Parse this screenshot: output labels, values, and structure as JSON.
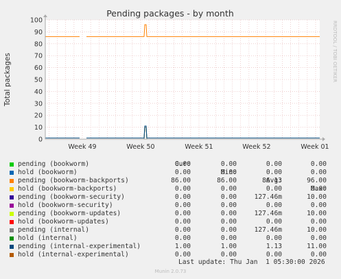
{
  "chart_data": {
    "type": "line",
    "title": "Pending packages - by month",
    "ylabel": "Total packages",
    "side_label": "RRDTOOL / TOBI OETIKER",
    "x_ticks": [
      "Week 49",
      "Week 50",
      "Week 51",
      "Week 52",
      "Week 01"
    ],
    "y_ticks_top": [
      80,
      90,
      100
    ],
    "y_ticks_top_extra": [
      70
    ],
    "y_ticks": [
      0,
      10,
      20,
      30,
      40,
      50,
      60,
      70,
      80,
      90,
      100
    ],
    "ylim": [
      0,
      100
    ],
    "grid": true,
    "series": [
      {
        "name": "pending (bookworm)",
        "color": "#00cc00",
        "cur": "0.00",
        "min": "0.00",
        "avg": "0.00",
        "max": "0.00"
      },
      {
        "name": "hold (bookworm)",
        "color": "#0066b3",
        "cur": "0.00",
        "min": "0.00",
        "avg": "0.00",
        "max": "0.00"
      },
      {
        "name": "pending (bookworm-backports)",
        "color": "#ff8000",
        "cur": "86.00",
        "min": "86.00",
        "avg": "86.13",
        "max": "96.00"
      },
      {
        "name": "hold (bookworm-backports)",
        "color": "#ffcc00",
        "cur": "0.00",
        "min": "0.00",
        "avg": "0.00",
        "max": "0.00"
      },
      {
        "name": "pending (bookworm-security)",
        "color": "#330099",
        "cur": "0.00",
        "min": "0.00",
        "avg": "127.46m",
        "max": "10.00"
      },
      {
        "name": "hold (bookworm-security)",
        "color": "#990099",
        "cur": "0.00",
        "min": "0.00",
        "avg": "0.00",
        "max": "0.00"
      },
      {
        "name": "pending (bookworm-updates)",
        "color": "#ccff00",
        "cur": "0.00",
        "min": "0.00",
        "avg": "127.46m",
        "max": "10.00"
      },
      {
        "name": "hold (bookworm-updates)",
        "color": "#ff0000",
        "cur": "0.00",
        "min": "0.00",
        "avg": "0.00",
        "max": "0.00"
      },
      {
        "name": "pending (internal)",
        "color": "#808080",
        "cur": "0.00",
        "min": "0.00",
        "avg": "127.46m",
        "max": "10.00"
      },
      {
        "name": "hold (internal)",
        "color": "#008f00",
        "cur": "0.00",
        "min": "0.00",
        "avg": "0.00",
        "max": "0.00"
      },
      {
        "name": "pending (internal-experimental)",
        "color": "#00487d",
        "cur": "1.00",
        "min": "1.00",
        "avg": "1.13",
        "max": "11.00"
      },
      {
        "name": "hold (internal-experimental)",
        "color": "#b35a00",
        "cur": "0.00",
        "min": "0.00",
        "avg": "0.00",
        "max": "0.00"
      }
    ]
  },
  "legend_headers": {
    "cur": "Cur:",
    "min": "Min:",
    "avg": "Avg:",
    "max": "Max:"
  },
  "last_update": "Last update: Thu Jan  1 05:30:00 2026",
  "footer": "Munin 2.0.73"
}
